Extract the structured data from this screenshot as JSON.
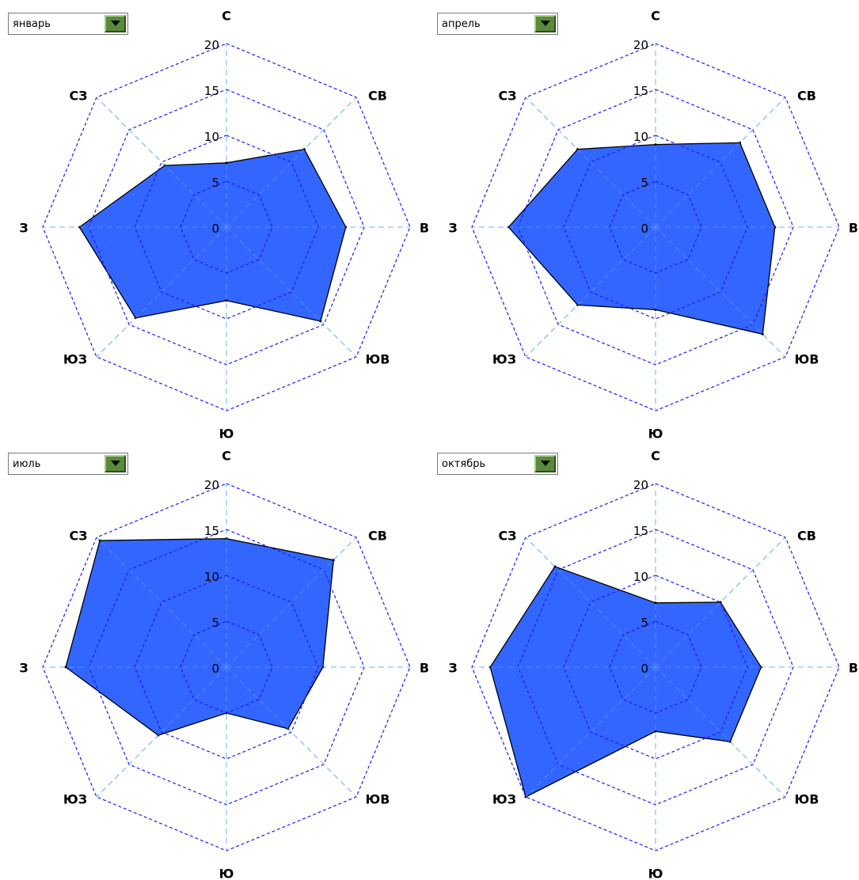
{
  "directions": [
    "С",
    "СВ",
    "В",
    "ЮВ",
    "Ю",
    "ЮЗ",
    "З",
    "СЗ"
  ],
  "radial_ticks": [
    "0",
    "5",
    "10",
    "15",
    "20"
  ],
  "colors": {
    "fill": "#3366ff",
    "outline": "#000000",
    "ring": "#1a1aff",
    "spoke": "#66b3ff",
    "combo_button": "#5a8a3c"
  },
  "panels": [
    {
      "month": "январь"
    },
    {
      "month": "апрель"
    },
    {
      "month": "июль"
    },
    {
      "month": "октябрь"
    }
  ],
  "chart_data": [
    {
      "type": "radar",
      "month": "январь",
      "categories": [
        "С",
        "СВ",
        "В",
        "ЮВ",
        "Ю",
        "ЮЗ",
        "З",
        "СЗ"
      ],
      "values": [
        7,
        12,
        13,
        14.5,
        8,
        14,
        16,
        9.5
      ],
      "rlim": [
        0,
        20
      ],
      "ticks": [
        0,
        5,
        10,
        15,
        20
      ],
      "grid": true
    },
    {
      "type": "radar",
      "month": "апрель",
      "categories": [
        "С",
        "СВ",
        "В",
        "ЮВ",
        "Ю",
        "ЮЗ",
        "З",
        "СЗ"
      ],
      "values": [
        9,
        13,
        13,
        16.5,
        9,
        12,
        16,
        12
      ],
      "rlim": [
        0,
        20
      ],
      "ticks": [
        0,
        5,
        10,
        15,
        20
      ],
      "grid": true
    },
    {
      "type": "radar",
      "month": "июль",
      "categories": [
        "С",
        "СВ",
        "В",
        "ЮВ",
        "Ю",
        "ЮЗ",
        "З",
        "СЗ"
      ],
      "values": [
        14,
        16.5,
        10.5,
        9.5,
        5,
        10.5,
        17.5,
        19.5
      ],
      "rlim": [
        0,
        20
      ],
      "ticks": [
        0,
        5,
        10,
        15,
        20
      ],
      "grid": true
    },
    {
      "type": "radar",
      "month": "октябрь",
      "categories": [
        "С",
        "СВ",
        "В",
        "ЮВ",
        "Ю",
        "ЮЗ",
        "З",
        "СЗ"
      ],
      "values": [
        7,
        10,
        11.5,
        11.5,
        7,
        20,
        18,
        15.5
      ],
      "rlim": [
        0,
        20
      ],
      "ticks": [
        0,
        5,
        10,
        15,
        20
      ],
      "grid": true
    }
  ]
}
